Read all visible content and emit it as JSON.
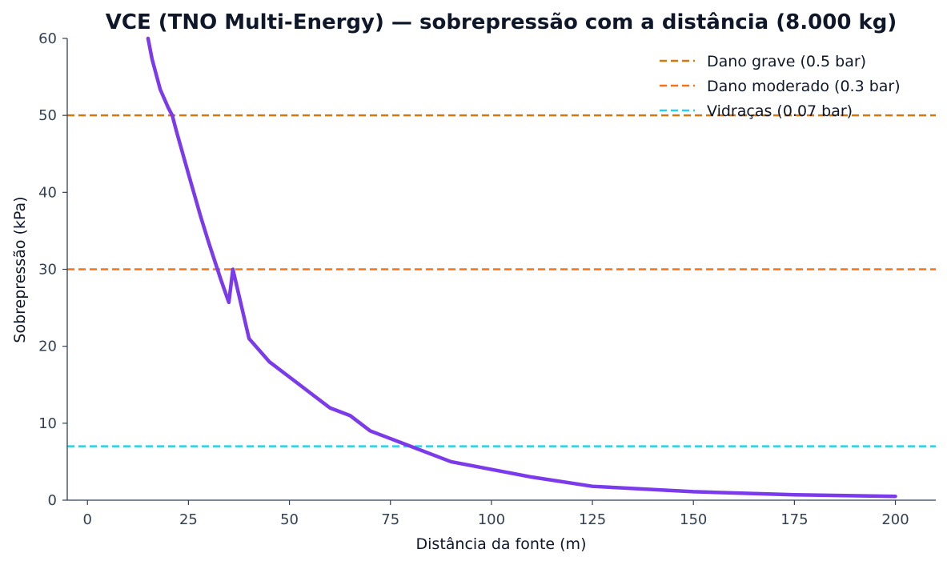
{
  "chart_data": {
    "type": "line",
    "title": "VCE (TNO Multi-Energy) — sobrepressão com a distância (8.000 kg)",
    "xlabel": "Distância da fonte (m)",
    "ylabel": "Sobrepressão (kPa)",
    "xlim": [
      -5,
      210
    ],
    "ylim": [
      0,
      60
    ],
    "x_ticks": [
      0,
      25,
      50,
      75,
      100,
      125,
      150,
      175,
      200
    ],
    "y_ticks": [
      0,
      10,
      20,
      30,
      40,
      50,
      60
    ],
    "grid": false,
    "legend_position": "top-right",
    "series": [
      {
        "kind": "curve",
        "color": "#7c3aed",
        "x": [
          15,
          16,
          18,
          20,
          21,
          22,
          25,
          28,
          30,
          33,
          35,
          36,
          40,
          45,
          50,
          55,
          60,
          65,
          70,
          75,
          80,
          90,
          100,
          110,
          125,
          150,
          175,
          200
        ],
        "y": [
          60,
          57.3,
          53.4,
          51,
          50,
          48,
          42.4,
          36.9,
          33.5,
          28.7,
          25.7,
          30,
          21,
          18,
          16,
          14,
          12,
          11,
          9,
          8,
          7,
          5,
          4,
          3,
          1.8,
          1.1,
          0.7,
          0.5
        ]
      }
    ],
    "thresholds": [
      {
        "name": "Dano grave (0.5 bar)",
        "y": 50,
        "color": "#d97706"
      },
      {
        "name": "Dano moderado (0.3 bar)",
        "y": 30,
        "color": "#f97316"
      },
      {
        "name": "Vidraças (0.07 bar)",
        "y": 7,
        "color": "#22d3ee"
      }
    ]
  }
}
